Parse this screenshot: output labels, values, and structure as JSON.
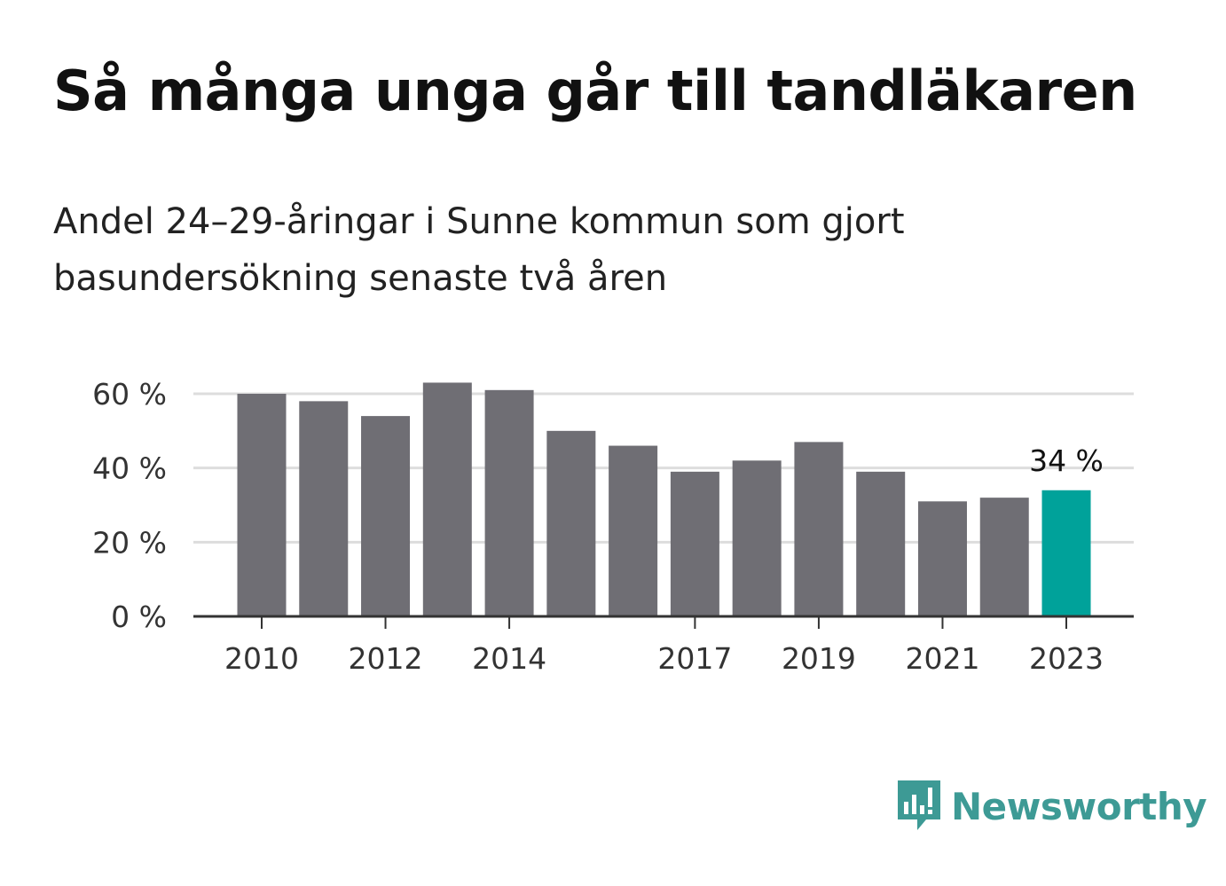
{
  "header": {
    "title": "Så många unga går till tandläkaren",
    "subtitle": "Andel 24–29-åringar i Sunne kommun som gjort basundersökning senaste två åren"
  },
  "brand": {
    "name": "Newsworthy",
    "color": "#3d9a95"
  },
  "colors": {
    "bar": "#6f6e74",
    "highlight": "#00a29a",
    "grid": "#dddddd",
    "axis": "#333333"
  },
  "chart_data": {
    "type": "bar",
    "years": [
      2010,
      2011,
      2012,
      2013,
      2014,
      2015,
      2016,
      2017,
      2018,
      2019,
      2020,
      2021,
      2022,
      2023
    ],
    "values": [
      60,
      58,
      54,
      63,
      61,
      50,
      46,
      39,
      42,
      47,
      39,
      31,
      32,
      34
    ],
    "x_tick_labels": [
      "2010",
      "2012",
      "2014",
      "2017",
      "2019",
      "2021",
      "2023"
    ],
    "y_ticks": [
      0,
      20,
      40,
      60
    ],
    "y_tick_labels": [
      "0 %",
      "20 %",
      "40 %",
      "60 %"
    ],
    "ylim": [
      0,
      60
    ],
    "grid": true,
    "highlight_year": 2023,
    "highlight_label": "34 %"
  }
}
